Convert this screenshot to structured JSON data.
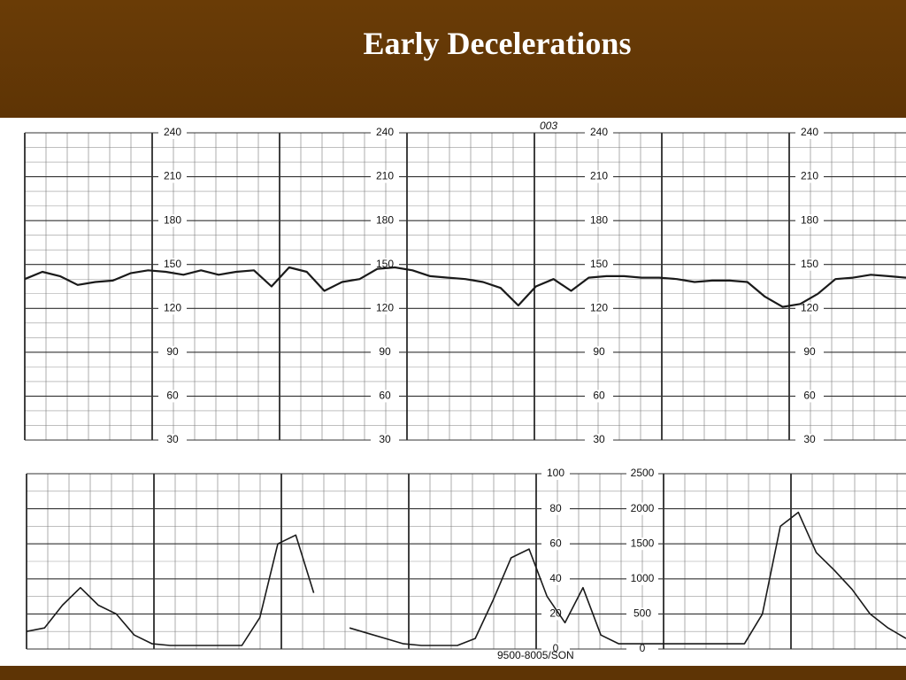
{
  "title": "Early Decelerations",
  "chart_data": [
    {
      "type": "line",
      "annotation": "003",
      "ylim": [
        30,
        240
      ],
      "yticks": [
        30,
        60,
        90,
        120,
        150,
        180,
        210,
        240
      ],
      "grid": true,
      "series": [
        {
          "color": "#1a1a1a",
          "values": [
            140,
            145,
            142,
            136,
            138,
            139,
            144,
            146,
            145,
            143,
            146,
            143,
            145,
            146,
            135,
            148,
            145,
            132,
            138,
            140,
            147,
            148,
            146,
            142,
            141,
            140,
            138,
            134,
            122,
            135,
            140,
            132,
            141,
            142,
            142,
            141,
            141,
            140,
            138,
            139,
            139,
            138,
            128,
            121,
            123,
            130,
            140,
            141,
            143,
            142,
            141
          ]
        }
      ]
    },
    {
      "type": "line",
      "annotation": "9500-8005/SON",
      "ylim": [
        0,
        100
      ],
      "yticks": [
        0,
        20,
        40,
        60,
        80,
        100
      ],
      "y2lim": [
        0,
        2500
      ],
      "y2ticks": [
        0,
        500,
        1000,
        1500,
        2000,
        2500
      ],
      "grid": true,
      "series": [
        {
          "color": "#1a1a1a",
          "values": [
            10,
            12,
            25,
            35,
            25,
            20,
            8,
            3,
            2,
            2,
            2,
            2,
            2,
            18,
            60,
            65,
            32,
            null,
            12,
            9,
            6,
            3,
            2,
            2,
            2,
            6,
            28,
            52,
            57,
            30,
            15,
            35,
            8,
            3,
            3,
            3,
            3,
            3,
            3,
            3,
            3,
            20,
            70,
            78,
            55,
            45,
            34,
            20,
            12,
            6
          ]
        }
      ]
    }
  ]
}
